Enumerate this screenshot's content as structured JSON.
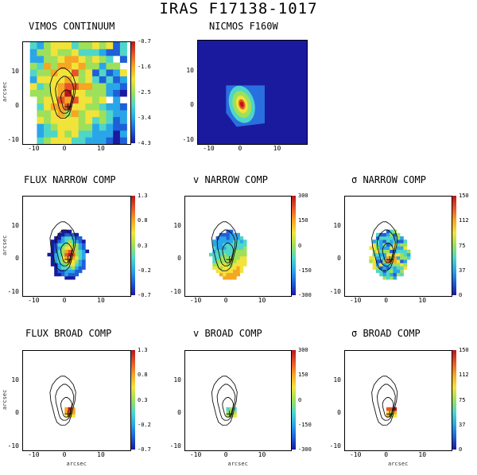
{
  "title": "IRAS F17138-1017",
  "axis_label": "arcsec",
  "colormap": [
    "#1a1a9e",
    "#1f5fd9",
    "#2aa6e8",
    "#4fd6c8",
    "#9ee05a",
    "#f1e33a",
    "#f5a623",
    "#e8542b",
    "#b8161a"
  ],
  "chart_data": [
    {
      "id": "vimos",
      "type": "heatmap",
      "title": "VIMOS CONTINUUM",
      "x_ticks": [
        "-10",
        "0",
        "10"
      ],
      "y_ticks": [
        "10",
        "0",
        "-10"
      ],
      "colorbar": [
        "-0.7",
        "-1.6",
        "-2.5",
        "-3.4",
        "-4.3"
      ],
      "ylabel": "arcsec",
      "xlabel": ""
    },
    {
      "id": "nicmos",
      "type": "heatmap",
      "title": "NICMOS F160W",
      "x_ticks": [
        "-10",
        "0",
        "10"
      ],
      "y_ticks": [
        "10",
        "0",
        "-10"
      ],
      "colorbar": [],
      "ylabel": "",
      "xlabel": ""
    },
    {
      "id": "flux_narrow",
      "type": "heatmap",
      "title": "FLUX NARROW COMP",
      "x_ticks": [
        "-10",
        "0",
        "10"
      ],
      "y_ticks": [
        "10",
        "0",
        "-10"
      ],
      "colorbar": [
        "1.3",
        "0.8",
        "0.3",
        "-0.2",
        "-0.7"
      ],
      "ylabel": "arcsec",
      "xlabel": ""
    },
    {
      "id": "v_narrow",
      "type": "heatmap",
      "title": "v NARROW COMP",
      "x_ticks": [
        "-10",
        "0",
        "10"
      ],
      "y_ticks": [
        "10",
        "0",
        "-10"
      ],
      "colorbar": [
        "300",
        "150",
        "0",
        "-150",
        "-300"
      ],
      "ylabel": "",
      "xlabel": ""
    },
    {
      "id": "sigma_narrow",
      "type": "heatmap",
      "title": "σ NARROW COMP",
      "x_ticks": [
        "-10",
        "0",
        "10"
      ],
      "y_ticks": [
        "10",
        "0",
        "-10"
      ],
      "colorbar": [
        "150",
        "112",
        "75",
        "37",
        "0"
      ],
      "ylabel": "",
      "xlabel": ""
    },
    {
      "id": "flux_broad",
      "type": "heatmap",
      "title": "FLUX BROAD COMP",
      "x_ticks": [
        "-10",
        "0",
        "10"
      ],
      "y_ticks": [
        "10",
        "0",
        "-10"
      ],
      "colorbar": [
        "1.3",
        "0.8",
        "0.3",
        "-0.2",
        "-0.7"
      ],
      "ylabel": "arcsec",
      "xlabel": "arcsec"
    },
    {
      "id": "v_broad",
      "type": "heatmap",
      "title": "v BROAD COMP",
      "x_ticks": [
        "-10",
        "0",
        "10"
      ],
      "y_ticks": [
        "10",
        "0",
        "-10"
      ],
      "colorbar": [
        "300",
        "150",
        "0",
        "-150",
        "-300"
      ],
      "ylabel": "",
      "xlabel": "arcsec"
    },
    {
      "id": "sigma_broad",
      "type": "heatmap",
      "title": "σ BROAD COMP",
      "x_ticks": [
        "-10",
        "0",
        "10"
      ],
      "y_ticks": [
        "10",
        "0",
        "-10"
      ],
      "colorbar": [
        "150",
        "112",
        "75",
        "37",
        "0"
      ],
      "ylabel": "",
      "xlabel": "arcsec"
    }
  ]
}
